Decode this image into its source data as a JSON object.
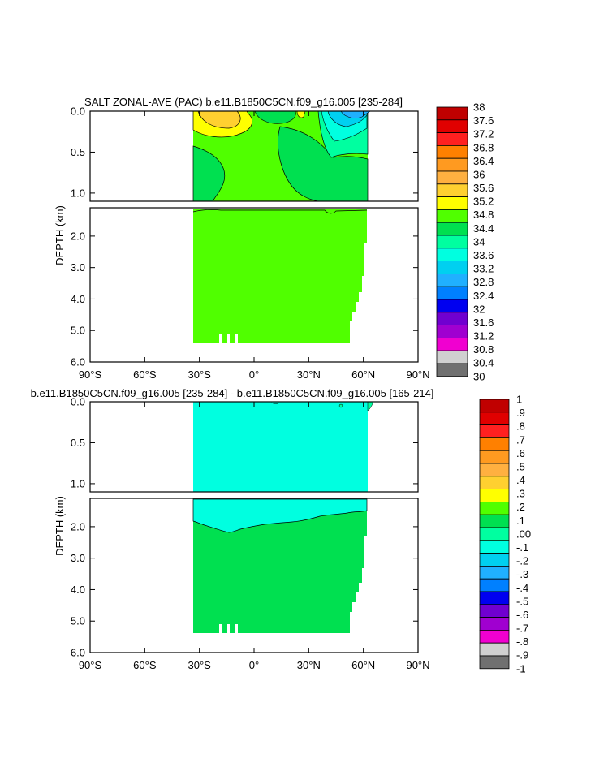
{
  "chart_data": [
    {
      "type": "heatmap",
      "title": "SALT ZONAL-AVE (PAC) b.e11.B1850C5CN.f09_g16.005 [235-284]",
      "ylabel": "DEPTH (km)",
      "x_ticks": [
        {
          "value": -90,
          "label": "90°S"
        },
        {
          "value": -60,
          "label": "60°S"
        },
        {
          "value": -30,
          "label": "30°S"
        },
        {
          "value": 0,
          "label": "0°"
        },
        {
          "value": 30,
          "label": "30°N"
        },
        {
          "value": 60,
          "label": "60°N"
        },
        {
          "value": 90,
          "label": "90°N"
        }
      ],
      "xlim": [
        -90,
        90
      ],
      "y_ticks_upper": [
        {
          "value": 0,
          "label": "0.0"
        },
        {
          "value": 0.5,
          "label": "0.5"
        },
        {
          "value": 1.0,
          "label": "1.0"
        }
      ],
      "y_ticks_lower": [
        {
          "value": 2,
          "label": "2.0"
        },
        {
          "value": 3,
          "label": "3.0"
        },
        {
          "value": 4,
          "label": "4.0"
        },
        {
          "value": 5,
          "label": "5.0"
        },
        {
          "value": 6,
          "label": "6.0"
        }
      ],
      "ylim_upper": [
        0,
        1.1
      ],
      "ylim_lower": [
        1.1,
        6.0
      ],
      "data_extent": {
        "lat_min": -33,
        "lat_max": 61,
        "depth_max_km": 5.4
      },
      "colorbar": {
        "labels": [
          "38",
          "37.6",
          "37.2",
          "36.8",
          "36.4",
          "36",
          "35.6",
          "35.2",
          "34.8",
          "34.4",
          "34",
          "33.6",
          "33.2",
          "32.8",
          "32.4",
          "32",
          "31.6",
          "31.2",
          "30.8",
          "30.4",
          "30"
        ],
        "colors": [
          "#C00000",
          "#E00000",
          "#FF2020",
          "#FF8000",
          "#FF9A20",
          "#FFB040",
          "#FFD030",
          "#FFFF00",
          "#50FF00",
          "#00E050",
          "#00FFA0",
          "#00FFE0",
          "#00D0F0",
          "#20B0FF",
          "#0080FF",
          "#0000F0",
          "#7000D0",
          "#A000D0",
          "#F000D0",
          "#D0D0D0",
          "#707070"
        ]
      }
    },
    {
      "type": "heatmap",
      "title": "b.e11.B1850C5CN.f09_g16.005 [235-284] - b.e11.B1850C5CN.f09_g16.005 [165-214]",
      "ylabel": "DEPTH (km)",
      "x_ticks": [
        {
          "value": -90,
          "label": "90°S"
        },
        {
          "value": -60,
          "label": "60°S"
        },
        {
          "value": -30,
          "label": "30°S"
        },
        {
          "value": 0,
          "label": "0°"
        },
        {
          "value": 30,
          "label": "30°N"
        },
        {
          "value": 60,
          "label": "60°N"
        },
        {
          "value": 90,
          "label": "90°N"
        }
      ],
      "xlim": [
        -90,
        90
      ],
      "y_ticks_upper": [
        {
          "value": 0,
          "label": "0.0"
        },
        {
          "value": 0.5,
          "label": "0.5"
        },
        {
          "value": 1.0,
          "label": "1.0"
        }
      ],
      "y_ticks_lower": [
        {
          "value": 2,
          "label": "2.0"
        },
        {
          "value": 3,
          "label": "3.0"
        },
        {
          "value": 4,
          "label": "4.0"
        },
        {
          "value": 5,
          "label": "5.0"
        },
        {
          "value": 6,
          "label": "6.0"
        }
      ],
      "ylim_upper": [
        0,
        1.1
      ],
      "ylim_lower": [
        1.1,
        6.0
      ],
      "data_extent": {
        "lat_min": -33,
        "lat_max": 61,
        "depth_max_km": 5.4
      },
      "colorbar": {
        "labels": [
          "1",
          ".9",
          ".8",
          ".7",
          ".6",
          ".5",
          ".4",
          ".3",
          ".2",
          ".1",
          ".00",
          "-.1",
          "-.2",
          "-.3",
          "-.4",
          "-.5",
          "-.6",
          "-.7",
          "-.8",
          "-.9",
          "-1"
        ],
        "colors": [
          "#C00000",
          "#E00000",
          "#FF2020",
          "#FF8000",
          "#FF9A20",
          "#FFB040",
          "#FFD030",
          "#FFFF00",
          "#50FF00",
          "#00E050",
          "#00FFA0",
          "#00FFE0",
          "#00D0F0",
          "#20B0FF",
          "#0080FF",
          "#0000F0",
          "#7000D0",
          "#A000D0",
          "#F000D0",
          "#D0D0D0",
          "#707070"
        ]
      }
    }
  ]
}
